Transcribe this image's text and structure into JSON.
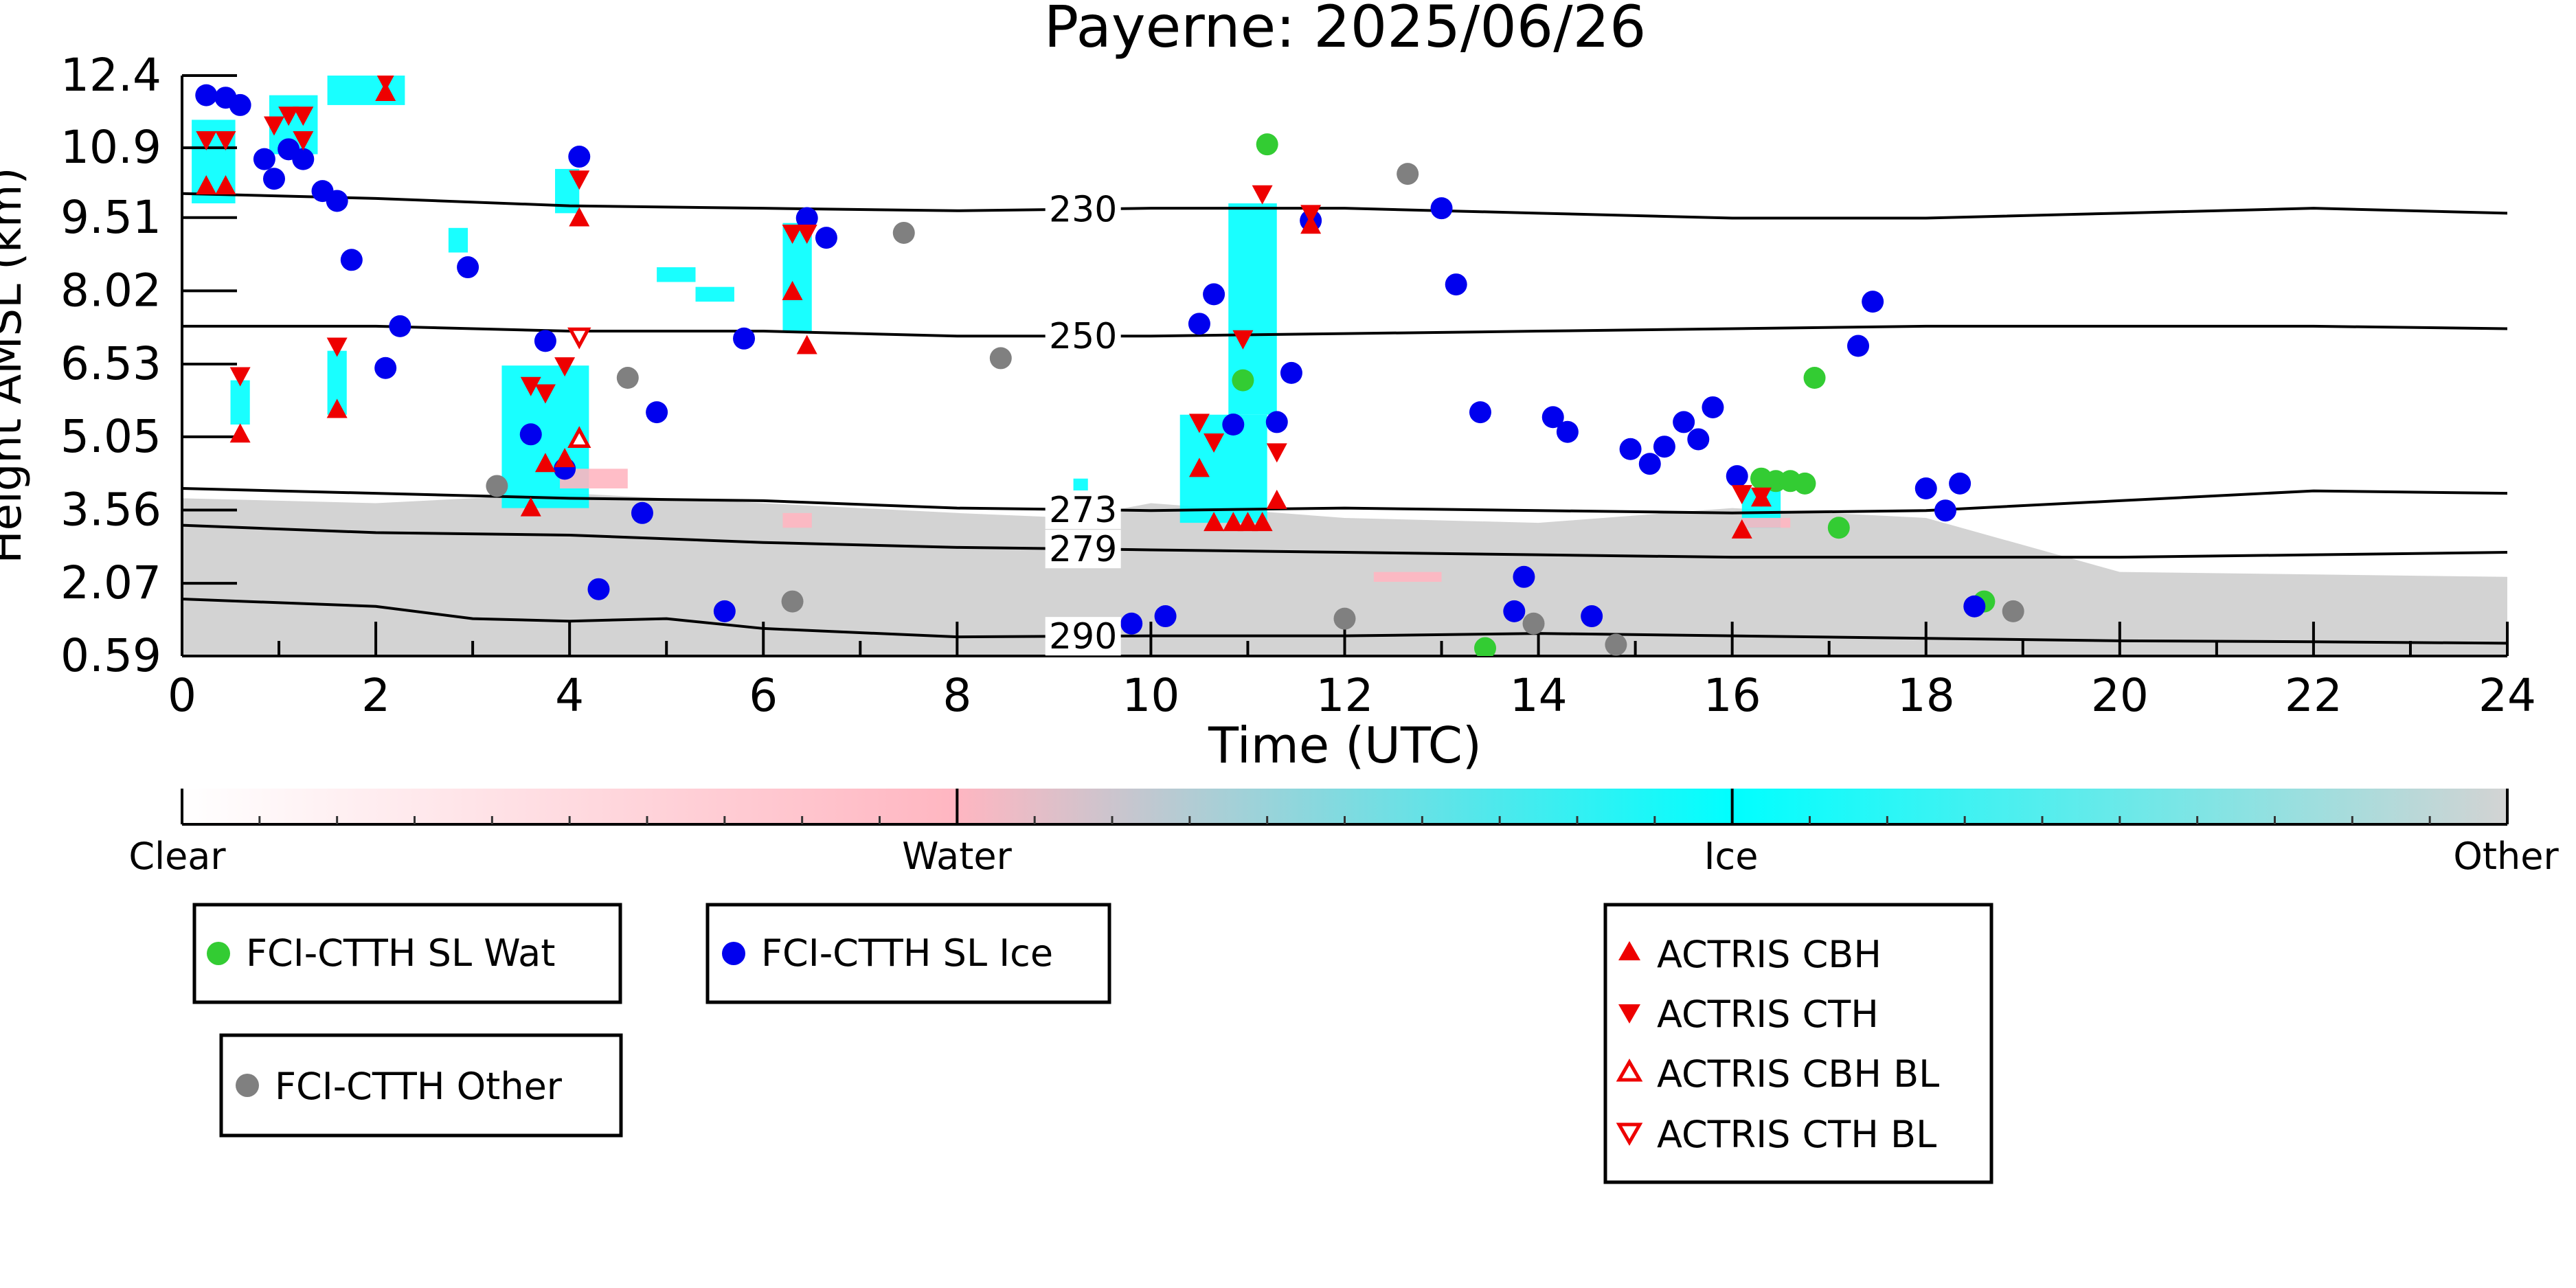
{
  "chart_data": {
    "type": "scatter",
    "title": "Payerne: 2025/06/26",
    "xlabel": "Time (UTC)",
    "ylabel": "Height AMSL (km)",
    "xlim": [
      0,
      24
    ],
    "ylim": [
      0.59,
      12.4
    ],
    "xticks": [
      "0",
      "2",
      "4",
      "6",
      "8",
      "10",
      "12",
      "14",
      "16",
      "18",
      "20",
      "22",
      "24"
    ],
    "yticks": [
      "0.59",
      "2.07",
      "3.56",
      "5.05",
      "6.53",
      "8.02",
      "9.51",
      "10.9",
      "12.4"
    ],
    "ytick_values": [
      0.59,
      2.07,
      3.56,
      5.05,
      6.53,
      8.02,
      9.51,
      10.93,
      12.4
    ],
    "colorbar": {
      "labels": [
        "Clear",
        "Water",
        "Ice",
        "Other"
      ],
      "colors": [
        "#ffffff",
        "#ffb6c1",
        "#00ffff",
        "#d3d3d3"
      ]
    },
    "temperature_contours": [
      {
        "label": "230",
        "label_x": 9.3,
        "points": [
          [
            0,
            10.0
          ],
          [
            2,
            9.9
          ],
          [
            4,
            9.75
          ],
          [
            6,
            9.7
          ],
          [
            8,
            9.65
          ],
          [
            10,
            9.7
          ],
          [
            12,
            9.7
          ],
          [
            14,
            9.6
          ],
          [
            16,
            9.5
          ],
          [
            18,
            9.5
          ],
          [
            20,
            9.6
          ],
          [
            22,
            9.7
          ],
          [
            24,
            9.6
          ]
        ]
      },
      {
        "label": "250",
        "label_x": 9.3,
        "points": [
          [
            0,
            7.3
          ],
          [
            2,
            7.3
          ],
          [
            4,
            7.2
          ],
          [
            6,
            7.2
          ],
          [
            8,
            7.1
          ],
          [
            10,
            7.1
          ],
          [
            12,
            7.15
          ],
          [
            14,
            7.2
          ],
          [
            16,
            7.25
          ],
          [
            18,
            7.3
          ],
          [
            20,
            7.3
          ],
          [
            22,
            7.3
          ],
          [
            24,
            7.25
          ]
        ]
      },
      {
        "label": "273",
        "label_x": 9.3,
        "points": [
          [
            0,
            4.0
          ],
          [
            2,
            3.9
          ],
          [
            4,
            3.8
          ],
          [
            6,
            3.75
          ],
          [
            8,
            3.6
          ],
          [
            10,
            3.55
          ],
          [
            12,
            3.6
          ],
          [
            14,
            3.55
          ],
          [
            16,
            3.5
          ],
          [
            18,
            3.55
          ],
          [
            20,
            3.75
          ],
          [
            22,
            3.95
          ],
          [
            24,
            3.9
          ]
        ]
      },
      {
        "label": "279",
        "label_x": 9.3,
        "points": [
          [
            0,
            3.25
          ],
          [
            2,
            3.1
          ],
          [
            4,
            3.05
          ],
          [
            6,
            2.9
          ],
          [
            8,
            2.8
          ],
          [
            10,
            2.75
          ],
          [
            12,
            2.7
          ],
          [
            14,
            2.65
          ],
          [
            16,
            2.6
          ],
          [
            18,
            2.6
          ],
          [
            20,
            2.6
          ],
          [
            22,
            2.65
          ],
          [
            24,
            2.7
          ]
        ]
      },
      {
        "label": "290",
        "label_x": 9.3,
        "points": [
          [
            0,
            1.75
          ],
          [
            2,
            1.6
          ],
          [
            3,
            1.35
          ],
          [
            4,
            1.3
          ],
          [
            5,
            1.35
          ],
          [
            6,
            1.15
          ],
          [
            8,
            0.98
          ],
          [
            10,
            1.0
          ],
          [
            12,
            1.0
          ],
          [
            14,
            1.05
          ],
          [
            16,
            1.0
          ],
          [
            18,
            0.95
          ],
          [
            20,
            0.9
          ],
          [
            22,
            0.88
          ],
          [
            24,
            0.85
          ]
        ]
      }
    ],
    "background_fields": [
      {
        "name": "Other",
        "color": "#d3d3d3",
        "points": [
          [
            0,
            3.8
          ],
          [
            2,
            3.7
          ],
          [
            4,
            3.9
          ],
          [
            6,
            3.7
          ],
          [
            8,
            3.5
          ],
          [
            9.2,
            3.4
          ],
          [
            10,
            3.7
          ],
          [
            12,
            3.4
          ],
          [
            14,
            3.3
          ],
          [
            16,
            3.6
          ],
          [
            18,
            3.4
          ],
          [
            20,
            2.3
          ],
          [
            24,
            2.2
          ]
        ]
      },
      {
        "name": "Ice",
        "color": "#00ffff",
        "regions": [
          {
            "x0": 0.1,
            "x1": 0.55,
            "y0": 9.8,
            "y1": 11.5
          },
          {
            "x0": 0.9,
            "x1": 1.4,
            "y0": 10.8,
            "y1": 12.0
          },
          {
            "x0": 1.5,
            "x1": 2.3,
            "y0": 11.8,
            "y1": 12.4
          },
          {
            "x0": 0.5,
            "x1": 0.7,
            "y0": 5.3,
            "y1": 6.2
          },
          {
            "x0": 1.5,
            "x1": 1.7,
            "y0": 5.5,
            "y1": 6.8
          },
          {
            "x0": 2.75,
            "x1": 2.95,
            "y0": 8.8,
            "y1": 9.3
          },
          {
            "x0": 3.3,
            "x1": 4.2,
            "y0": 3.6,
            "y1": 6.5
          },
          {
            "x0": 3.85,
            "x1": 4.1,
            "y0": 9.6,
            "y1": 10.5
          },
          {
            "x0": 6.2,
            "x1": 6.5,
            "y0": 7.2,
            "y1": 9.4
          },
          {
            "x0": 5.3,
            "x1": 5.7,
            "y0": 7.8,
            "y1": 8.1
          },
          {
            "x0": 4.9,
            "x1": 5.3,
            "y0": 8.2,
            "y1": 8.5
          },
          {
            "x0": 10.3,
            "x1": 11.2,
            "y0": 3.3,
            "y1": 5.5
          },
          {
            "x0": 10.8,
            "x1": 11.3,
            "y0": 5.5,
            "y1": 9.8
          },
          {
            "x0": 9.2,
            "x1": 9.35,
            "y0": 3.4,
            "y1": 4.2
          },
          {
            "x0": 16.1,
            "x1": 16.5,
            "y0": 3.2,
            "y1": 4.0
          }
        ]
      },
      {
        "name": "Water",
        "color": "#ffb6c1",
        "regions": [
          {
            "x0": 3.9,
            "x1": 4.6,
            "y0": 4.0,
            "y1": 4.4
          },
          {
            "x0": 6.2,
            "x1": 6.5,
            "y0": 3.2,
            "y1": 3.5
          },
          {
            "x0": 12.3,
            "x1": 13.0,
            "y0": 2.1,
            "y1": 2.3
          },
          {
            "x0": 16.1,
            "x1": 16.6,
            "y0": 3.2,
            "y1": 3.4
          }
        ]
      }
    ],
    "series": [
      {
        "name": "FCI-CTTH SL Wat",
        "marker": "circle",
        "color": "#33cc33",
        "points": [
          [
            11.2,
            11.0
          ],
          [
            10.95,
            6.2
          ],
          [
            13.45,
            0.75
          ],
          [
            16.3,
            4.2
          ],
          [
            16.45,
            4.15
          ],
          [
            16.6,
            4.15
          ],
          [
            16.75,
            4.1
          ],
          [
            16.85,
            6.25
          ],
          [
            17.1,
            3.2
          ],
          [
            18.6,
            1.7
          ]
        ]
      },
      {
        "name": "FCI-CTTH SL Ice",
        "marker": "circle",
        "color": "#0000ee",
        "points": [
          [
            0.25,
            12.0
          ],
          [
            0.45,
            11.95
          ],
          [
            0.6,
            11.8
          ],
          [
            0.85,
            10.7
          ],
          [
            0.95,
            10.3
          ],
          [
            1.1,
            10.9
          ],
          [
            1.25,
            10.7
          ],
          [
            1.45,
            10.05
          ],
          [
            1.6,
            9.85
          ],
          [
            1.75,
            8.65
          ],
          [
            2.1,
            6.45
          ],
          [
            2.25,
            7.3
          ],
          [
            2.95,
            8.5
          ],
          [
            3.6,
            5.1
          ],
          [
            3.75,
            7.0
          ],
          [
            3.95,
            4.4
          ],
          [
            4.1,
            10.75
          ],
          [
            4.3,
            1.95
          ],
          [
            4.75,
            3.5
          ],
          [
            4.9,
            5.55
          ],
          [
            5.6,
            1.5
          ],
          [
            5.8,
            7.05
          ],
          [
            6.45,
            9.5
          ],
          [
            6.65,
            9.1
          ],
          [
            9.8,
            1.25
          ],
          [
            10.15,
            1.4
          ],
          [
            10.5,
            7.35
          ],
          [
            10.65,
            7.95
          ],
          [
            10.85,
            5.3
          ],
          [
            11.3,
            5.35
          ],
          [
            11.45,
            6.35
          ],
          [
            11.65,
            9.45
          ],
          [
            13.0,
            9.7
          ],
          [
            13.15,
            8.15
          ],
          [
            13.4,
            5.55
          ],
          [
            13.75,
            1.5
          ],
          [
            13.85,
            2.2
          ],
          [
            14.15,
            5.45
          ],
          [
            14.3,
            5.15
          ],
          [
            14.55,
            1.4
          ],
          [
            14.95,
            4.8
          ],
          [
            15.15,
            4.5
          ],
          [
            15.3,
            4.85
          ],
          [
            15.5,
            5.35
          ],
          [
            15.65,
            5.0
          ],
          [
            15.8,
            5.65
          ],
          [
            16.05,
            4.25
          ],
          [
            17.3,
            6.9
          ],
          [
            17.45,
            7.8
          ],
          [
            18.0,
            4.0
          ],
          [
            18.2,
            3.55
          ],
          [
            18.35,
            4.1
          ],
          [
            18.5,
            1.6
          ]
        ]
      },
      {
        "name": "FCI-CTTH Other",
        "marker": "circle",
        "color": "#808080",
        "points": [
          [
            3.25,
            4.05
          ],
          [
            4.6,
            6.25
          ],
          [
            6.3,
            1.7
          ],
          [
            7.45,
            9.2
          ],
          [
            8.45,
            6.65
          ],
          [
            12.0,
            1.35
          ],
          [
            12.65,
            10.4
          ],
          [
            13.95,
            1.25
          ],
          [
            14.8,
            0.82
          ],
          [
            18.9,
            1.5
          ]
        ]
      },
      {
        "name": "ACTRIS CBH",
        "marker": "triangle-up",
        "color": "#ee0000",
        "points": [
          [
            0.25,
            10.15
          ],
          [
            0.45,
            10.15
          ],
          [
            0.6,
            5.1
          ],
          [
            1.6,
            5.6
          ],
          [
            2.1,
            12.05
          ],
          [
            3.6,
            3.6
          ],
          [
            3.75,
            4.5
          ],
          [
            3.95,
            4.6
          ],
          [
            4.1,
            9.5
          ],
          [
            6.3,
            8.0
          ],
          [
            6.45,
            6.9
          ],
          [
            10.5,
            4.4
          ],
          [
            10.65,
            3.3
          ],
          [
            10.85,
            3.3
          ],
          [
            11.0,
            3.3
          ],
          [
            11.15,
            3.3
          ],
          [
            11.3,
            3.75
          ],
          [
            11.65,
            9.35
          ],
          [
            16.1,
            3.15
          ],
          [
            16.3,
            3.8
          ]
        ]
      },
      {
        "name": "ACTRIS CTH",
        "marker": "triangle-down",
        "color": "#ee0000",
        "points": [
          [
            0.25,
            11.1
          ],
          [
            0.45,
            11.1
          ],
          [
            0.6,
            6.3
          ],
          [
            0.95,
            11.4
          ],
          [
            1.1,
            11.6
          ],
          [
            1.25,
            11.6
          ],
          [
            1.25,
            11.1
          ],
          [
            1.6,
            6.9
          ],
          [
            2.1,
            12.3
          ],
          [
            3.6,
            6.1
          ],
          [
            3.75,
            5.95
          ],
          [
            3.95,
            6.5
          ],
          [
            4.1,
            10.3
          ],
          [
            6.3,
            9.2
          ],
          [
            6.45,
            9.2
          ],
          [
            10.5,
            5.35
          ],
          [
            10.65,
            4.95
          ],
          [
            10.95,
            7.05
          ],
          [
            11.15,
            10.0
          ],
          [
            11.3,
            4.75
          ],
          [
            11.65,
            9.6
          ],
          [
            16.1,
            3.9
          ],
          [
            16.3,
            3.85
          ]
        ]
      },
      {
        "name": "ACTRIS CBH BL",
        "marker": "triangle-up-open",
        "color": "#ee0000",
        "points": [
          [
            4.1,
            5.0
          ]
        ]
      },
      {
        "name": "ACTRIS CTH BL",
        "marker": "triangle-down-open",
        "color": "#ee0000",
        "points": [
          [
            4.1,
            7.1
          ]
        ]
      }
    ],
    "legend": {
      "wat": "FCI-CTTH SL Wat",
      "ice": "FCI-CTTH SL Ice",
      "other": "FCI-CTTH Other",
      "cbh": "ACTRIS CBH",
      "cth": "ACTRIS CTH",
      "cbh_bl": "ACTRIS CBH BL",
      "cth_bl": "ACTRIS CTH BL"
    }
  }
}
